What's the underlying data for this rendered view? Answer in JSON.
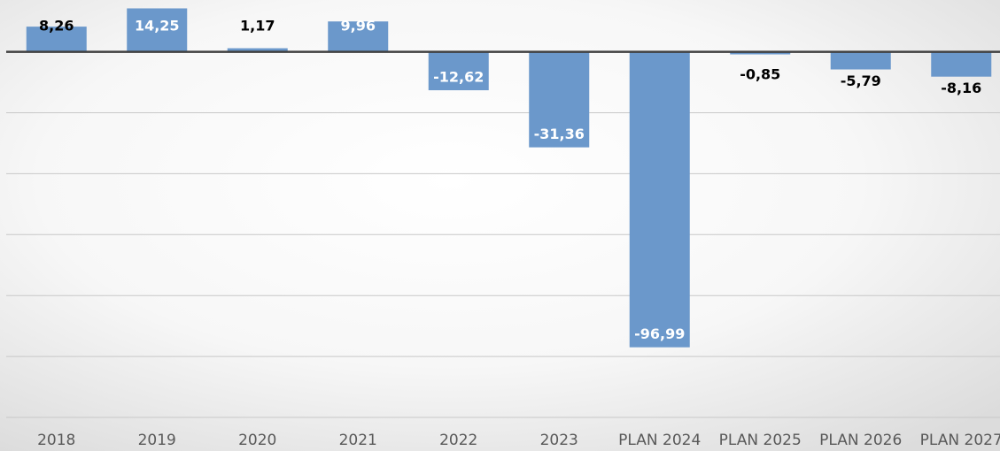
{
  "chart_data": {
    "type": "bar",
    "categories": [
      "2018",
      "2019",
      "2020",
      "2021",
      "2022",
      "2023",
      "PLAN 2024",
      "PLAN 2025",
      "PLAN 2026",
      "PLAN 2027"
    ],
    "values": [
      8.26,
      14.25,
      1.17,
      9.96,
      -12.62,
      -31.36,
      -96.99,
      -0.85,
      -5.79,
      -8.16
    ],
    "value_labels": [
      "8,26",
      "14,25",
      "1,17",
      "9,96",
      "-12,62",
      "-31,36",
      "-96,99",
      "-0,85",
      "-5,79",
      "-8,16"
    ],
    "color": "#6b98cb",
    "ylim": [
      -120,
      17
    ],
    "yticks": [
      -120,
      -100,
      -80,
      -60,
      -40,
      -20,
      0
    ],
    "grid": true
  }
}
